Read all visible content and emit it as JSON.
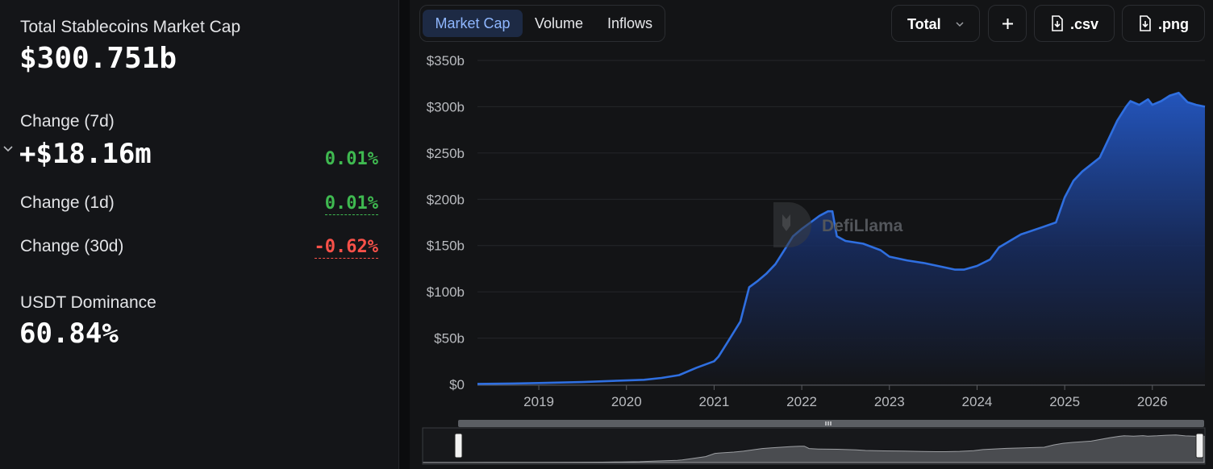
{
  "summary": {
    "total_label": "Total Stablecoins Market Cap",
    "total_value": "$300.751b",
    "change_7d_label": "Change (7d)",
    "change_7d_value": "+$18.16m",
    "change_7d_pct": "0.01%",
    "change_1d_label": "Change (1d)",
    "change_1d_pct": "0.01%",
    "change_30d_label": "Change (30d)",
    "change_30d_pct": "-0.62%",
    "usdt_label": "USDT Dominance",
    "usdt_value": "60.84%"
  },
  "tabs": [
    {
      "label": "Market Cap",
      "active": true
    },
    {
      "label": "Volume",
      "active": false
    },
    {
      "label": "Inflows",
      "active": false
    }
  ],
  "toolbar": {
    "total_select": "Total",
    "add_icon": "plus-icon",
    "csv_label": ".csv",
    "png_label": ".png",
    "download_icon": "file-download-icon"
  },
  "watermark": "DefiLlama",
  "colors": {
    "line": "#2f6fe0",
    "positive": "#3fb950",
    "negative": "#f85149",
    "active_tab_bg": "#1d2a44",
    "active_tab_text": "#8fb7ff"
  },
  "chart_data": {
    "type": "area",
    "y_ticks": [
      "$0",
      "$50b",
      "$100b",
      "$150b",
      "$200b",
      "$250b",
      "$300b",
      "$350b"
    ],
    "x_ticks": [
      "2019",
      "2020",
      "2021",
      "2022",
      "2023",
      "2024",
      "2025",
      "2026"
    ],
    "ylim": [
      0,
      350
    ],
    "y_unit": "billion USD",
    "grid": true,
    "x": [
      2018.3,
      2018.7,
      2019.0,
      2019.5,
      2019.9,
      2020.2,
      2020.4,
      2020.6,
      2020.8,
      2021.0,
      2021.05,
      2021.15,
      2021.3,
      2021.4,
      2021.5,
      2021.6,
      2021.7,
      2021.8,
      2021.9,
      2022.0,
      2022.1,
      2022.2,
      2022.3,
      2022.35,
      2022.4,
      2022.5,
      2022.7,
      2022.9,
      2023.0,
      2023.2,
      2023.4,
      2023.6,
      2023.75,
      2023.85,
      2024.0,
      2024.15,
      2024.25,
      2024.5,
      2024.75,
      2024.9,
      2025.0,
      2025.1,
      2025.2,
      2025.4,
      2025.5,
      2025.6,
      2025.7,
      2025.75,
      2025.85,
      2025.95,
      2026.0,
      2026.1,
      2026.2,
      2026.3,
      2026.4,
      2026.5,
      2026.6
    ],
    "series": [
      {
        "values": [
          0.5,
          1.0,
          1.5,
          2.5,
          4.0,
          5.0,
          7.0,
          10.0,
          18.0,
          25.0,
          30.0,
          45.0,
          68.0,
          105.0,
          112.0,
          120.0,
          130.0,
          145.0,
          160.0,
          168.0,
          175.0,
          182.0,
          187.0,
          187.0,
          160.0,
          155.0,
          152.0,
          145.0,
          138.0,
          134.0,
          131.0,
          127.0,
          124.0,
          124.0,
          128.0,
          135.0,
          148.0,
          162.0,
          170.0,
          175.0,
          202.0,
          220.0,
          230.0,
          245.0,
          265.0,
          285.0,
          300.0,
          306.0,
          302.0,
          308.0,
          302.0,
          306.0,
          312.0,
          315.0,
          305.0,
          302.0,
          300.0
        ]
      }
    ]
  }
}
